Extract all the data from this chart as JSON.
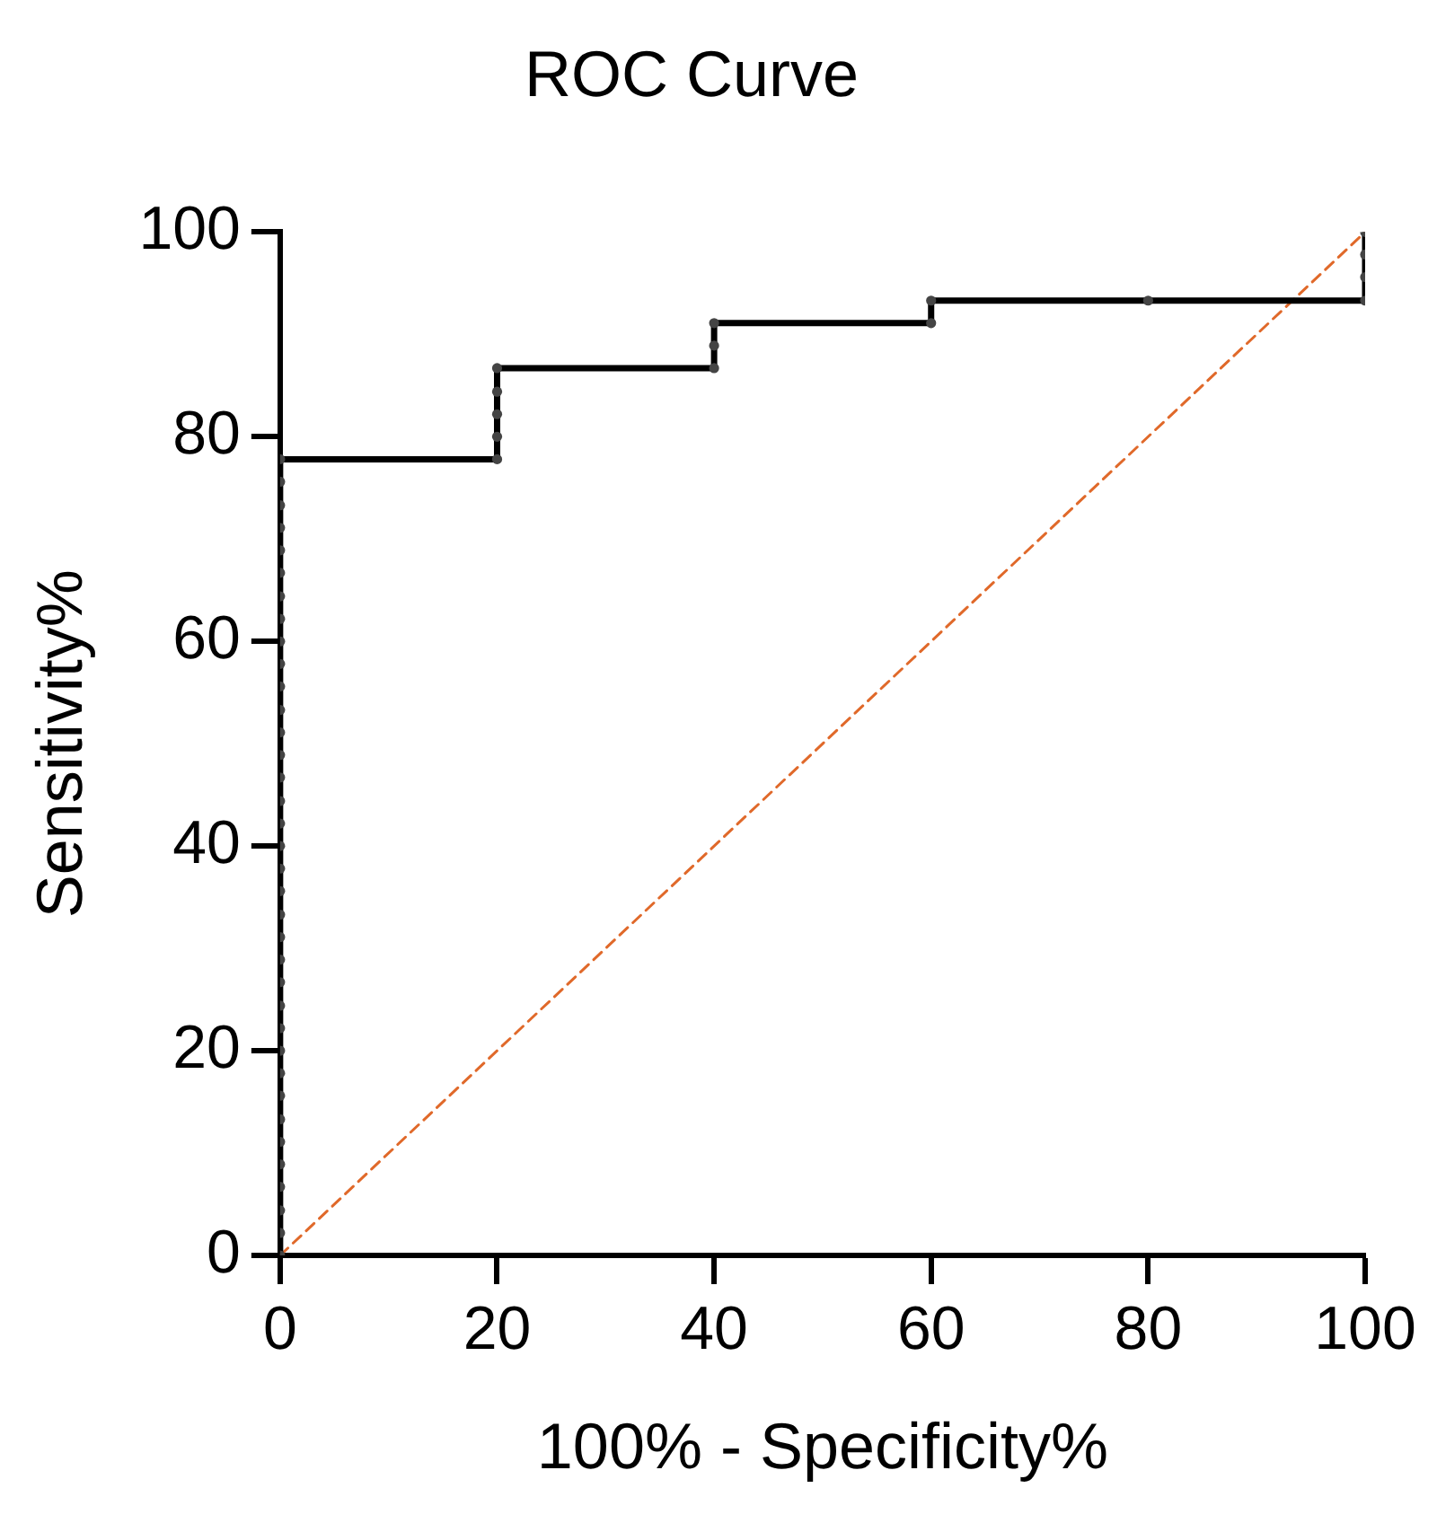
{
  "chart_data": {
    "type": "line",
    "title": "ROC Curve",
    "xlabel": "100% - Specificity%",
    "ylabel": "Sensitivity%",
    "xlim": [
      0,
      100
    ],
    "xticks": [
      0,
      20,
      40,
      60,
      80,
      100
    ],
    "ylim": [
      0,
      100
    ],
    "yticks": [
      0,
      20,
      40,
      60,
      80,
      100
    ],
    "grid": false,
    "legend": false,
    "series": [
      {
        "color": "#000000",
        "marker": "circle",
        "line_style": "solid",
        "x": [
          0,
          0,
          0,
          0,
          0,
          0,
          0,
          0,
          0,
          0,
          0,
          0,
          0,
          0,
          0,
          0,
          0,
          0,
          0,
          0,
          0,
          0,
          0,
          0,
          0,
          0,
          0,
          0,
          0,
          0,
          0,
          0,
          0,
          0,
          0,
          0,
          20,
          20,
          20,
          20,
          20,
          40,
          40,
          40,
          60,
          60,
          80,
          100,
          100,
          100,
          100
        ],
        "values": [
          0,
          2.2,
          4.4,
          6.7,
          8.9,
          11.1,
          13.3,
          15.6,
          17.8,
          20,
          22.2,
          24.4,
          26.7,
          28.9,
          31.1,
          33.3,
          35.6,
          37.8,
          40,
          42.2,
          44.4,
          46.7,
          48.9,
          51.1,
          53.3,
          55.6,
          57.8,
          60,
          62.2,
          64.4,
          66.7,
          68.9,
          71.1,
          73.3,
          75.6,
          77.8,
          77.8,
          80,
          82.2,
          84.4,
          86.7,
          86.7,
          88.9,
          91.1,
          91.1,
          93.3,
          93.3,
          93.3,
          95.6,
          97.8,
          100
        ]
      },
      {
        "color": "#e0692a",
        "marker": "none",
        "line_style": "dashed",
        "x": [
          0,
          100
        ],
        "values": [
          0,
          100
        ]
      }
    ]
  }
}
